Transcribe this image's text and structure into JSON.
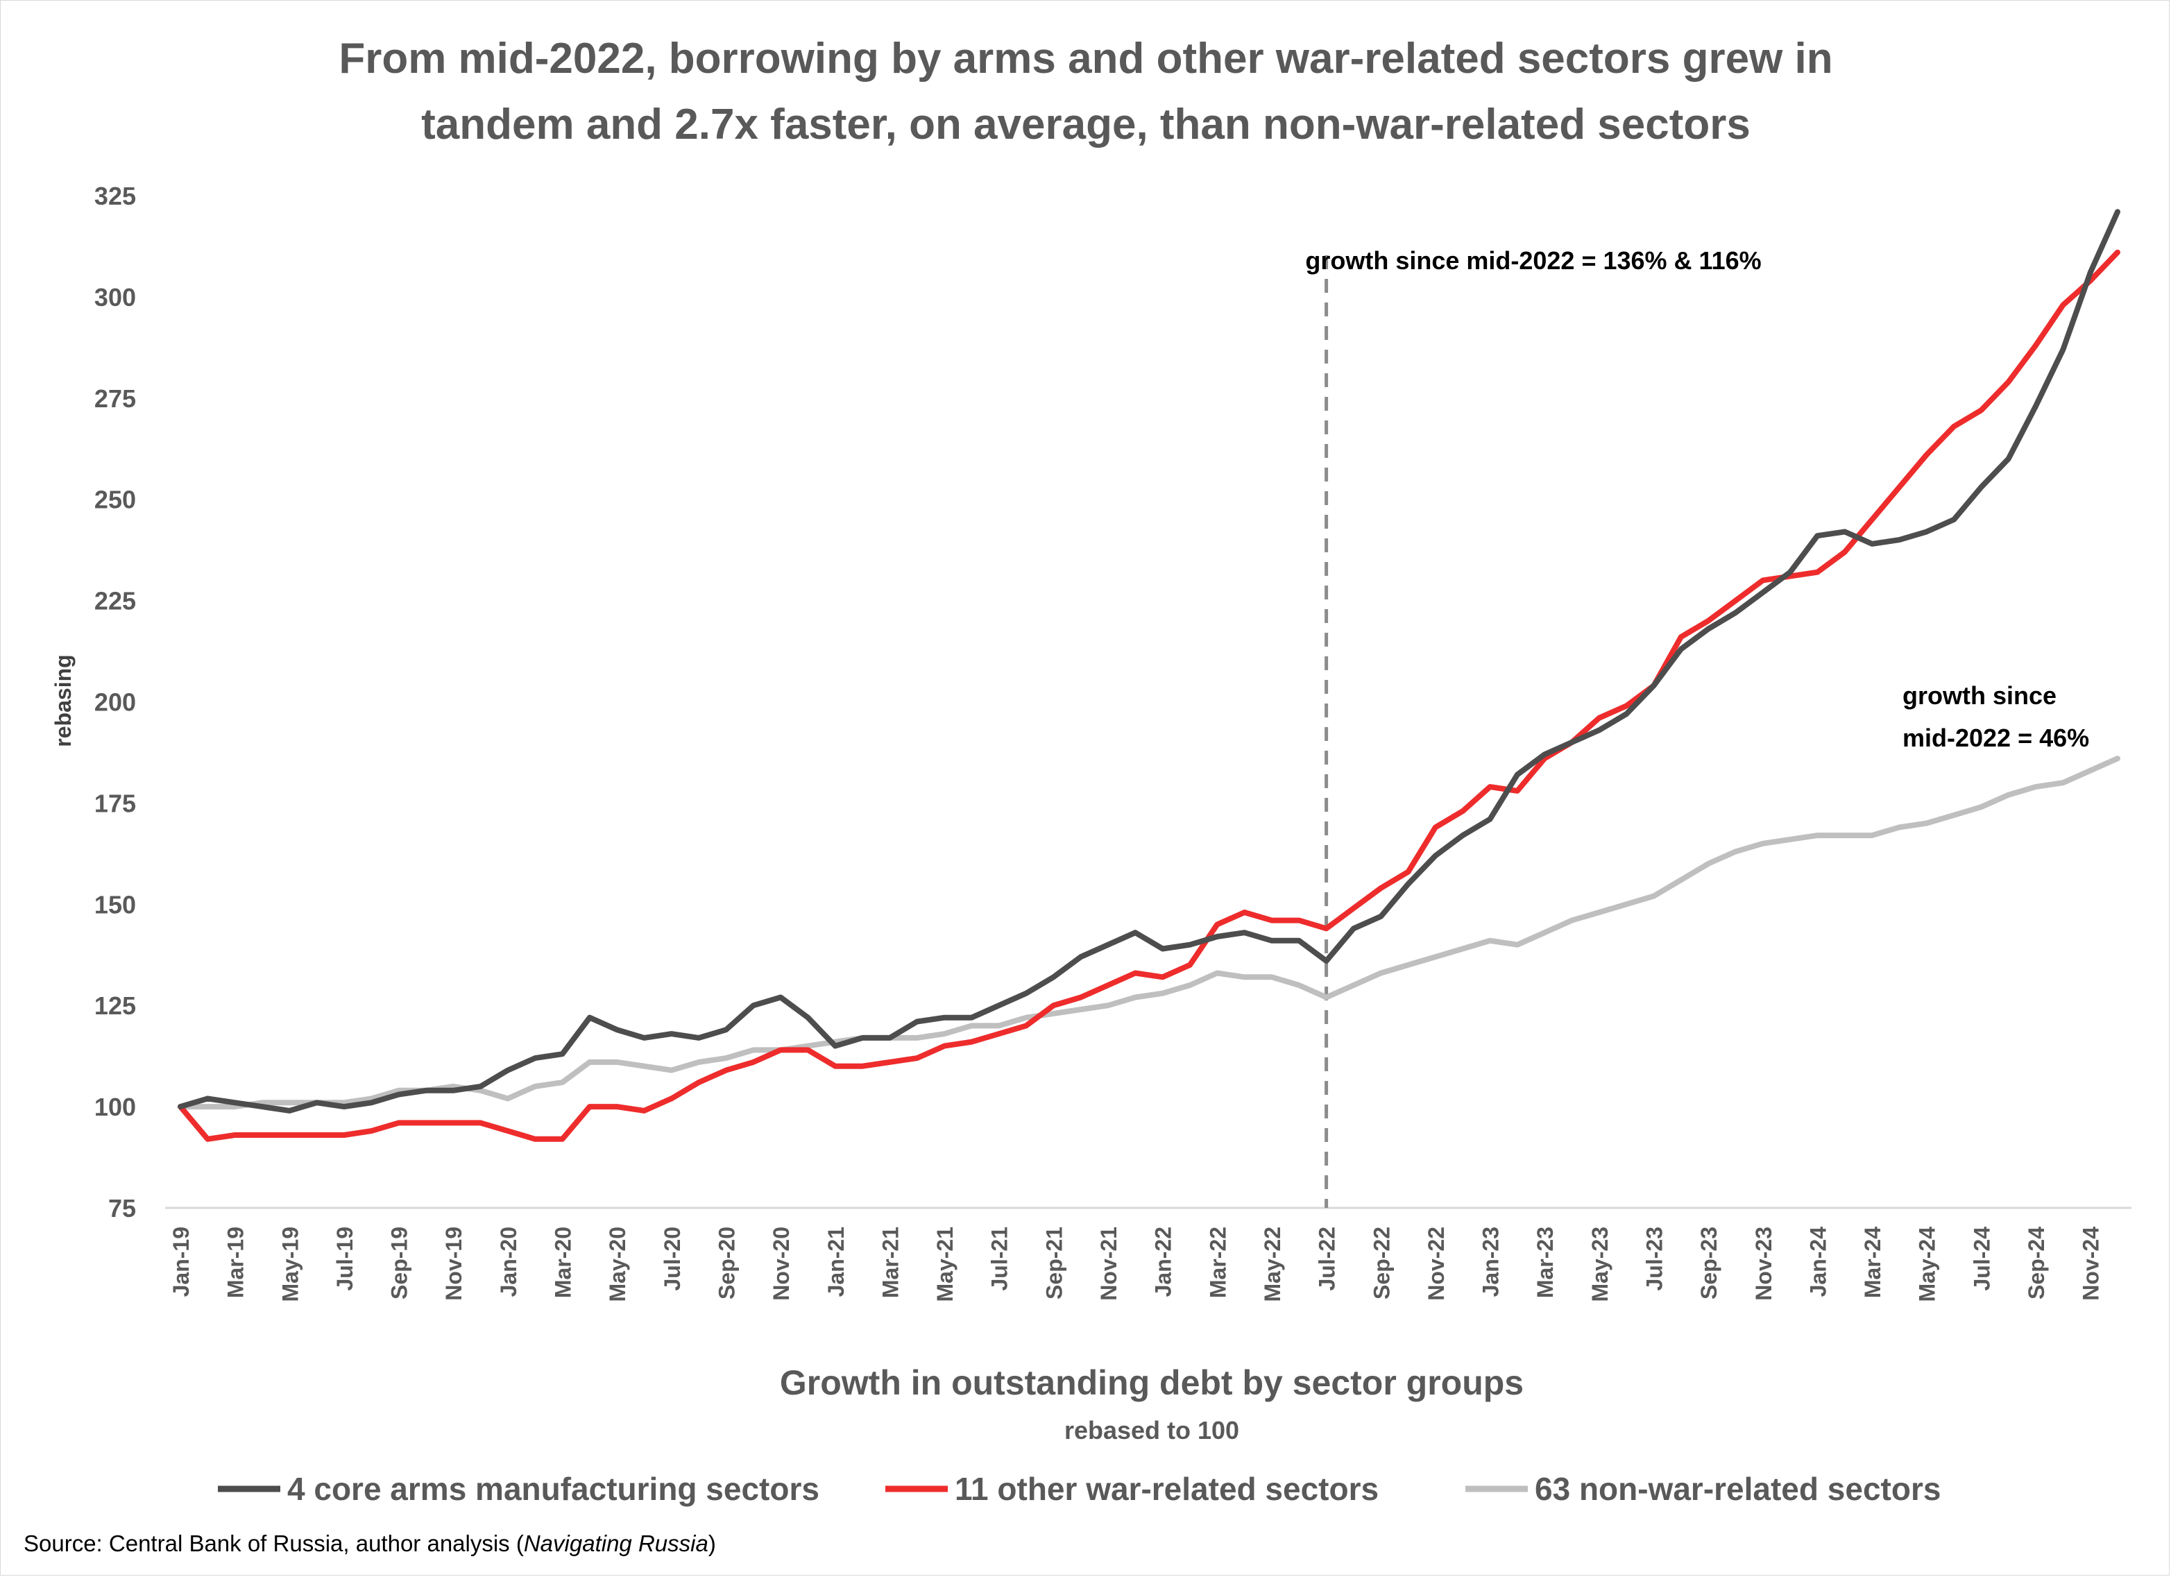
{
  "chart_data": {
    "type": "line",
    "title": "From mid-2022, borrowing by arms and other war-related sectors grew in tandem and 2.7x faster, on average, than non-war-related sectors",
    "title_lines": [
      "From mid-2022, borrowing by arms and other war-related sectors grew in",
      "tandem and 2.7x faster, on average, than non-war-related sectors"
    ],
    "xlabel": "Growth in outstanding debt by sector groups",
    "xlabel_sub": "rebased to 100",
    "ylabel": "rebasing",
    "ylim": [
      75,
      325
    ],
    "yticks": [
      75,
      100,
      125,
      150,
      175,
      200,
      225,
      250,
      275,
      300,
      325
    ],
    "grid": false,
    "legend_position": "bottom",
    "x": [
      "Jan-19",
      "Feb-19",
      "Mar-19",
      "Apr-19",
      "May-19",
      "Jun-19",
      "Jul-19",
      "Aug-19",
      "Sep-19",
      "Oct-19",
      "Nov-19",
      "Dec-19",
      "Jan-20",
      "Feb-20",
      "Mar-20",
      "Apr-20",
      "May-20",
      "Jun-20",
      "Jul-20",
      "Aug-20",
      "Sep-20",
      "Oct-20",
      "Nov-20",
      "Dec-20",
      "Jan-21",
      "Feb-21",
      "Mar-21",
      "Apr-21",
      "May-21",
      "Jun-21",
      "Jul-21",
      "Aug-21",
      "Sep-21",
      "Oct-21",
      "Nov-21",
      "Dec-21",
      "Jan-22",
      "Feb-22",
      "Mar-22",
      "Apr-22",
      "May-22",
      "Jun-22",
      "Jul-22",
      "Aug-22",
      "Sep-22",
      "Oct-22",
      "Nov-22",
      "Dec-22",
      "Jan-23",
      "Feb-23",
      "Mar-23",
      "Apr-23",
      "May-23",
      "Jun-23",
      "Jul-23",
      "Aug-23",
      "Sep-23",
      "Oct-23",
      "Nov-23",
      "Dec-23",
      "Jan-24",
      "Feb-24",
      "Mar-24",
      "Apr-24",
      "May-24",
      "Jun-24",
      "Jul-24",
      "Aug-24",
      "Sep-24",
      "Oct-24",
      "Nov-24",
      "Dec-24"
    ],
    "x_tick_labels": [
      "Jan-19",
      "Mar-19",
      "May-19",
      "Jul-19",
      "Sep-19",
      "Nov-19",
      "Jan-20",
      "Mar-20",
      "May-20",
      "Jul-20",
      "Sep-20",
      "Nov-20",
      "Jan-21",
      "Mar-21",
      "May-21",
      "Jul-21",
      "Sep-21",
      "Nov-21",
      "Jan-22",
      "Mar-22",
      "May-22",
      "Jul-22",
      "Sep-22",
      "Nov-22",
      "Jan-23",
      "Mar-23",
      "May-23",
      "Jul-23",
      "Sep-23",
      "Nov-23",
      "Jan-24",
      "Mar-24",
      "May-24",
      "Jul-24",
      "Sep-24",
      "Nov-24"
    ],
    "vertical_marker": {
      "x": "Jul-22",
      "style": "dashed",
      "color": "#8c8c8c"
    },
    "series": [
      {
        "name": "4 core arms manufacturing sectors",
        "color": "#4d4d4d",
        "values": [
          100,
          102,
          101,
          100,
          99,
          101,
          100,
          101,
          103,
          104,
          104,
          105,
          109,
          112,
          113,
          122,
          119,
          117,
          118,
          117,
          119,
          125,
          127,
          122,
          115,
          117,
          117,
          121,
          122,
          122,
          125,
          128,
          132,
          137,
          140,
          143,
          139,
          140,
          142,
          143,
          141,
          141,
          136,
          144,
          147,
          155,
          162,
          167,
          171,
          182,
          187,
          190,
          193,
          197,
          204,
          213,
          218,
          222,
          227,
          232,
          241,
          242,
          239,
          240,
          242,
          245,
          253,
          260,
          273,
          287,
          306,
          321
        ]
      },
      {
        "name": "11 other war-related sectors",
        "color": "#ee2c2c",
        "values": [
          100,
          92,
          93,
          93,
          93,
          93,
          93,
          94,
          96,
          96,
          96,
          96,
          94,
          92,
          92,
          100,
          100,
          99,
          102,
          106,
          109,
          111,
          114,
          114,
          110,
          110,
          111,
          112,
          115,
          116,
          118,
          120,
          125,
          127,
          130,
          133,
          132,
          135,
          145,
          148,
          146,
          146,
          144,
          149,
          154,
          158,
          169,
          173,
          179,
          178,
          186,
          190,
          196,
          199,
          204,
          216,
          220,
          225,
          230,
          231,
          232,
          237,
          245,
          253,
          261,
          268,
          272,
          279,
          288,
          298,
          304,
          311
        ]
      },
      {
        "name": "63 non-war-related sectors",
        "color": "#bfbfbf",
        "values": [
          100,
          100,
          100,
          101,
          101,
          101,
          101,
          102,
          104,
          104,
          105,
          104,
          102,
          105,
          106,
          111,
          111,
          110,
          109,
          111,
          112,
          114,
          114,
          115,
          116,
          117,
          117,
          117,
          118,
          120,
          120,
          122,
          123,
          124,
          125,
          127,
          128,
          130,
          133,
          132,
          132,
          130,
          127,
          130,
          133,
          135,
          137,
          139,
          141,
          140,
          143,
          146,
          148,
          150,
          152,
          156,
          160,
          163,
          165,
          166,
          167,
          167,
          167,
          169,
          170,
          172,
          174,
          177,
          179,
          180,
          183,
          186
        ]
      }
    ],
    "annotations": [
      {
        "text": "growth since mid-2022 = 136% & 116%"
      },
      {
        "text_lines": [
          "growth since",
          "mid-2022 = 46%"
        ]
      }
    ]
  },
  "source": {
    "prefix": "Source: Central Bank of Russia, author analysis (",
    "italic": "Navigating Russia",
    "suffix": ")"
  }
}
